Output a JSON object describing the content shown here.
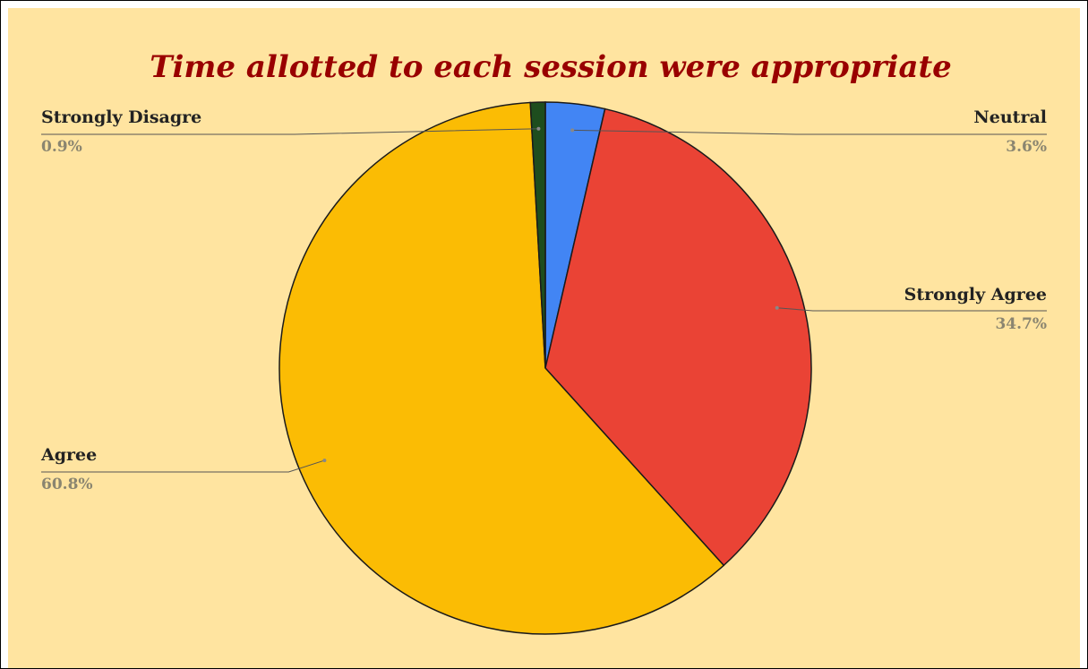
{
  "chart_data": {
    "type": "pie",
    "title": "Time allotted to each session were appropriate",
    "slices": [
      {
        "label": "Neutral",
        "value": 3.6,
        "value_label": "3.6%",
        "color": "#4285f4"
      },
      {
        "label": "Strongly Agree",
        "value": 34.7,
        "value_label": "34.7%",
        "color": "#ea4335"
      },
      {
        "label": "Agree",
        "value": 60.8,
        "value_label": "60.8%",
        "color": "#fbbc04"
      },
      {
        "label": "Strongly Disagre",
        "value": 0.9,
        "value_label": "0.9%",
        "color": "#1e4d1e"
      }
    ],
    "start_angle_degrees": 0,
    "direction": "clockwise",
    "label_style": "outside-with-leader-lines"
  },
  "colors": {
    "background": "#ffe4a0",
    "title": "#990000",
    "category_text": "#222222",
    "percent_text": "#8a8570",
    "leader_line": "#555555",
    "slice_border": "#1a1a1a"
  }
}
